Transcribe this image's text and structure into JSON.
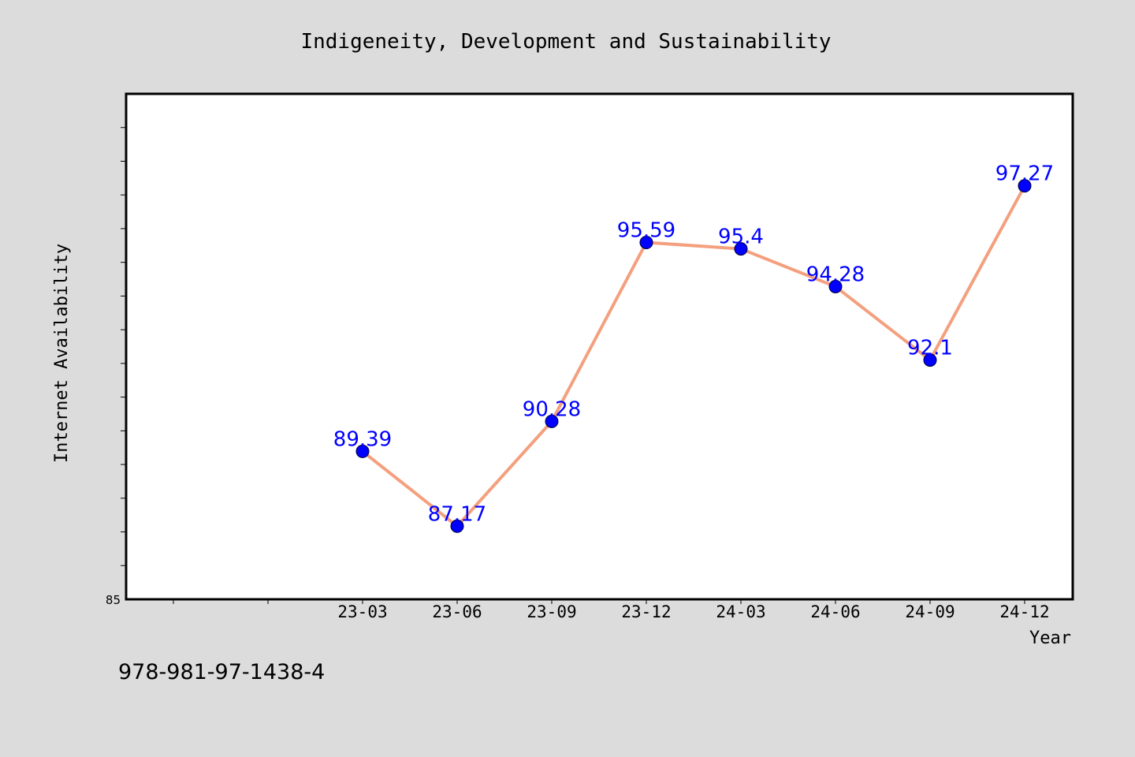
{
  "chart_data": {
    "type": "line",
    "title": "Indigeneity, Development and Sustainability",
    "xlabel": "Year",
    "ylabel": "Internet Availability",
    "categories": [
      "23-03",
      "23-06",
      "23-09",
      "23-12",
      "24-03",
      "24-06",
      "24-09",
      "24-12"
    ],
    "series": [
      {
        "values": [
          89.39,
          87.17,
          90.28,
          95.59,
          95.4,
          94.28,
          92.1,
          97.27
        ]
      }
    ],
    "data_labels": [
      "89.39",
      "87.17",
      "90.28",
      "95.59",
      "95.4",
      "94.28",
      "92.1",
      "97.27"
    ],
    "ylim": [
      85,
      100
    ],
    "y_tick_labels": [
      "85"
    ],
    "grid": false,
    "line_color": "#f4a07e",
    "marker_color": "#0000ff",
    "label_color": "#0000ff"
  },
  "footer": {
    "isbn": "978-981-97-1438-4"
  }
}
